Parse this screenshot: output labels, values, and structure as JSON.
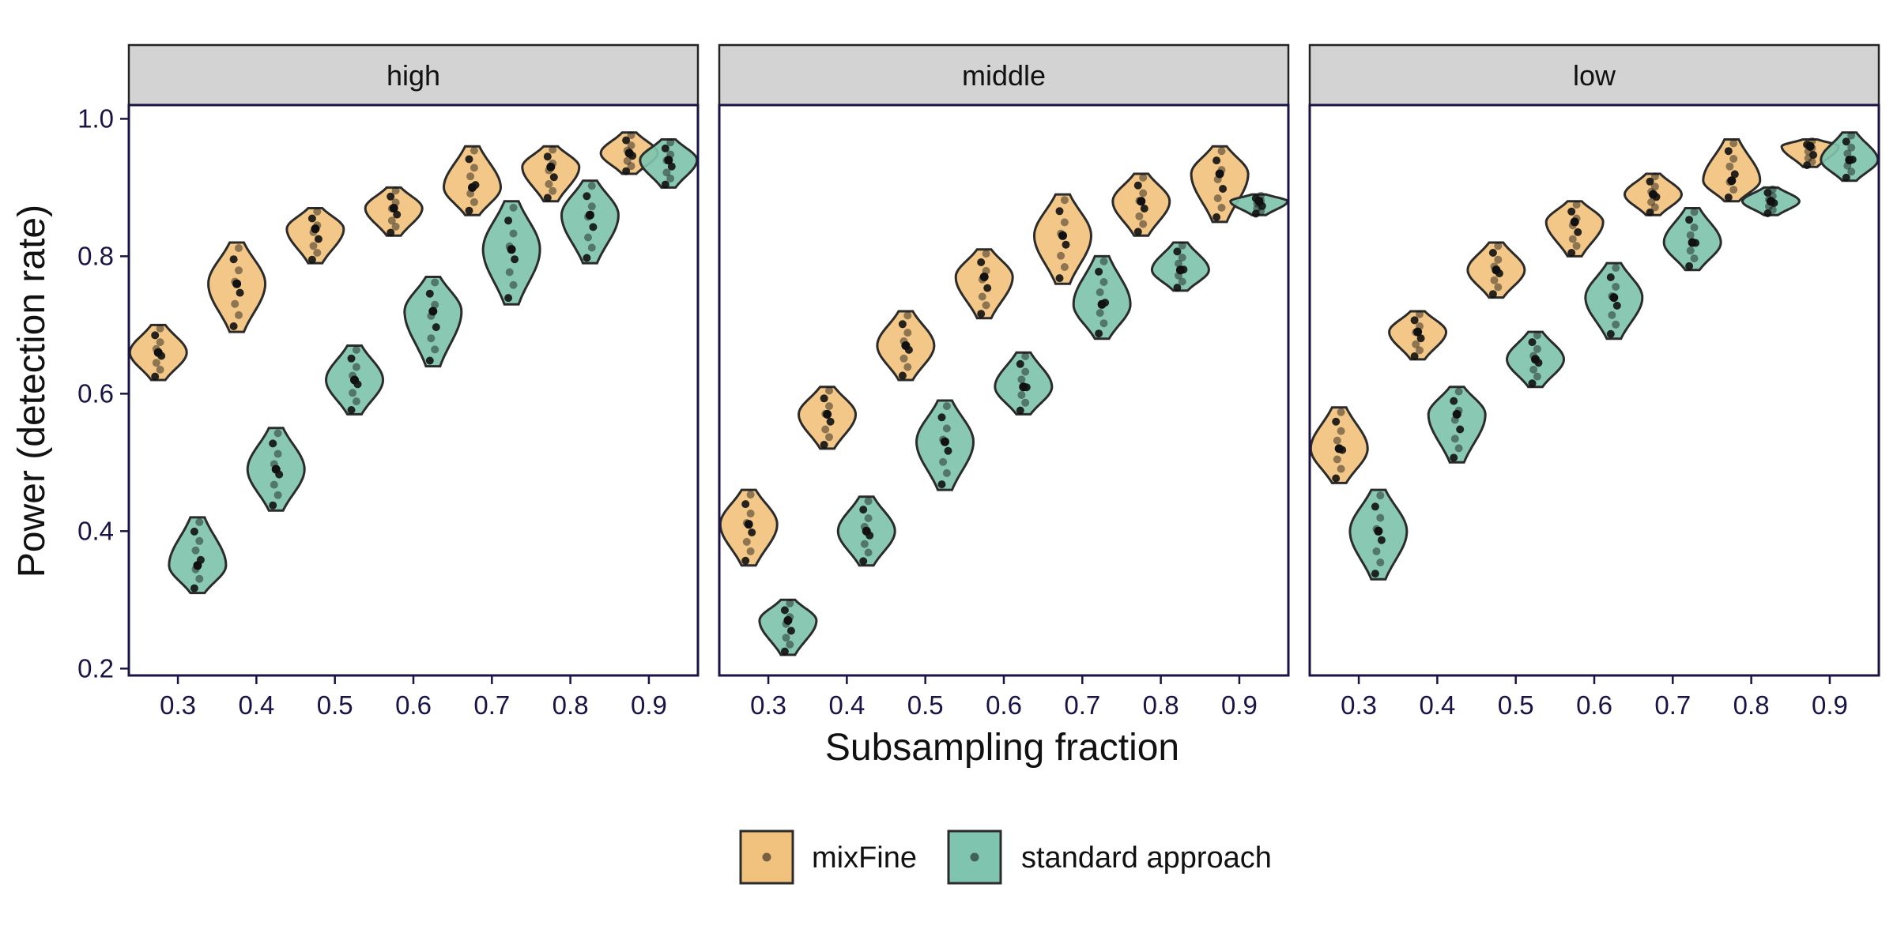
{
  "chart_data": {
    "type": "violin",
    "xlabel": "Subsampling fraction",
    "ylabel": "Power (detection rate)",
    "ylim": [
      0.19,
      1.02
    ],
    "yticks": [
      0.2,
      0.4,
      0.6,
      0.8,
      1.0
    ],
    "ytick_labels": [
      "0.2",
      "0.4",
      "0.6",
      "0.8",
      "1.0"
    ],
    "x": [
      0.3,
      0.4,
      0.5,
      0.6,
      0.7,
      0.8,
      0.9
    ],
    "xtick_labels": [
      "0.3",
      "0.4",
      "0.5",
      "0.6",
      "0.7",
      "0.8",
      "0.9"
    ],
    "colors": {
      "mixFine": "#f1c27d",
      "standard": "#7fc4ae",
      "dot": "#111111",
      "outline": "#2b2b2b",
      "strip_bg": "#d3d3d3"
    },
    "legend": {
      "position": "bottom",
      "items": [
        {
          "key": "mixFine",
          "label": "mixFine"
        },
        {
          "key": "standard",
          "label": "standard approach"
        }
      ]
    },
    "panels": [
      {
        "label": "high",
        "series": [
          {
            "name": "mixFine",
            "values": [
              0.66,
              0.76,
              0.84,
              0.87,
              0.9,
              0.93,
              0.95
            ],
            "min": [
              0.62,
              0.69,
              0.79,
              0.83,
              0.86,
              0.88,
              0.92
            ],
            "max": [
              0.7,
              0.82,
              0.87,
              0.9,
              0.96,
              0.96,
              0.98
            ]
          },
          {
            "name": "standard approach",
            "values": [
              0.35,
              0.49,
              0.62,
              0.72,
              0.81,
              0.86,
              0.94
            ],
            "min": [
              0.31,
              0.43,
              0.57,
              0.64,
              0.73,
              0.79,
              0.9
            ],
            "max": [
              0.42,
              0.55,
              0.67,
              0.77,
              0.88,
              0.91,
              0.97
            ]
          }
        ]
      },
      {
        "label": "middle",
        "series": [
          {
            "name": "mixFine",
            "values": [
              0.41,
              0.57,
              0.67,
              0.77,
              0.83,
              0.88,
              0.92
            ],
            "min": [
              0.35,
              0.52,
              0.62,
              0.71,
              0.76,
              0.83,
              0.85
            ],
            "max": [
              0.46,
              0.61,
              0.72,
              0.81,
              0.89,
              0.92,
              0.96
            ]
          },
          {
            "name": "standard approach",
            "values": [
              0.27,
              0.4,
              0.53,
              0.61,
              0.73,
              0.78,
              0.88
            ],
            "min": [
              0.22,
              0.35,
              0.46,
              0.57,
              0.68,
              0.75,
              0.86
            ],
            "max": [
              0.3,
              0.45,
              0.59,
              0.66,
              0.8,
              0.82,
              0.89
            ]
          }
        ]
      },
      {
        "label": "low",
        "series": [
          {
            "name": "mixFine",
            "values": [
              0.52,
              0.69,
              0.78,
              0.85,
              0.89,
              0.91,
              0.96
            ],
            "min": [
              0.47,
              0.65,
              0.74,
              0.8,
              0.86,
              0.88,
              0.93
            ],
            "max": [
              0.58,
              0.72,
              0.82,
              0.88,
              0.92,
              0.97,
              0.97
            ]
          },
          {
            "name": "standard approach",
            "values": [
              0.4,
              0.57,
              0.65,
              0.74,
              0.82,
              0.88,
              0.94
            ],
            "min": [
              0.33,
              0.5,
              0.61,
              0.68,
              0.78,
              0.86,
              0.91
            ],
            "max": [
              0.46,
              0.61,
              0.69,
              0.79,
              0.87,
              0.9,
              0.98
            ]
          }
        ]
      }
    ]
  }
}
